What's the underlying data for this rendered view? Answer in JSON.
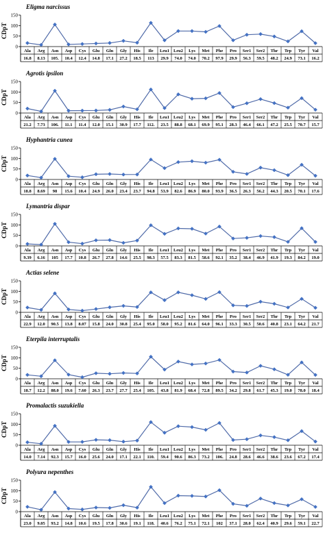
{
  "chart_data": {
    "type": "line",
    "categories": [
      "Ala",
      "Arg",
      "Asn",
      "Asp",
      "Cys",
      "Glu",
      "Gln",
      "Gly",
      "His",
      "Ile",
      "Leu1",
      "Leu2",
      "Lys",
      "Met",
      "Phe",
      "Pro",
      "Ser1",
      "Ser2",
      "Thr",
      "Trp",
      "Tyr",
      "Val"
    ],
    "ylabel": "CDpT",
    "ylim": [
      0,
      150
    ],
    "yticks": [
      0,
      50,
      100,
      150
    ],
    "line_color": "#4f6aa8",
    "marker_color": "#4472c4",
    "panels": [
      {
        "title": "Eligma narcissus",
        "values": [
          16.8,
          8.13,
          105,
          10.4,
          12.4,
          14.8,
          17.1,
          27.2,
          18.5,
          113,
          29.9,
          74.0,
          74.0,
          70.2,
          97.9,
          29.9,
          56.3,
          59.5,
          48.2,
          24.9,
          73.1,
          16.2
        ],
        "labels": [
          "16.8",
          "8.13",
          "105.",
          "10.4",
          "12.4",
          "14.8",
          "17.1",
          "27.2",
          "18.5",
          "113",
          "29.9",
          "74.0",
          "74.0",
          "70.2",
          "97.9",
          "29.9",
          "56.3",
          "59.5",
          "48.2",
          "24.9",
          "73.1",
          "16.2"
        ]
      },
      {
        "title": "Agrotis ipsilon",
        "values": [
          21.2,
          7.73,
          106,
          11.1,
          11.4,
          12.0,
          15.1,
          30.9,
          17.7,
          112,
          23.5,
          88.8,
          68.1,
          69.9,
          95.1,
          28.3,
          46.4,
          66.1,
          47.2,
          25.5,
          70.7,
          15.7
        ],
        "labels": [
          "21.2",
          "7.73",
          "106.",
          "11.1",
          "11.4",
          "12.0",
          "15.1",
          "30.9",
          "17.7",
          "112.",
          "23.5",
          "88.8",
          "68.1",
          "69.9",
          "95.1",
          "28.3",
          "46.4",
          "66.1",
          "47.2",
          "25.5",
          "70.7",
          "15.7"
        ]
      },
      {
        "title": "Hyphantria cunea",
        "values": [
          18.8,
          8.69,
          98,
          15.6,
          10.4,
          24.9,
          26.0,
          23.4,
          23.7,
          94.8,
          53.9,
          82.6,
          86.9,
          80.0,
          93.9,
          36.5,
          26.3,
          56.2,
          44.3,
          20.5,
          70.1,
          17.6
        ],
        "labels": [
          "18.8",
          "8.69",
          "98",
          "15.6",
          "10.4",
          "24.9",
          "26.0",
          "23.4",
          "23.7",
          "94.8",
          "53.9",
          "82.6",
          "86.9",
          "80.0",
          "93.9",
          "36.5",
          "26.3",
          "56.2",
          "44.3",
          "20.5",
          "70.1",
          "17.6"
        ]
      },
      {
        "title": "Lymantria dispar",
        "values": [
          9.39,
          6.16,
          105,
          17.7,
          10.8,
          26.7,
          27.8,
          14.6,
          25.5,
          98.3,
          57.5,
          83.3,
          81.5,
          58.6,
          92.1,
          35.2,
          38.4,
          46.9,
          41.9,
          19.3,
          84.2,
          19.0
        ],
        "labels": [
          "9.39",
          "6.16",
          "105",
          "17.7",
          "10.8",
          "26.7",
          "27.8",
          "14.6",
          "25.5",
          "98.3",
          "57.5",
          "83.3",
          "81.5",
          "58.6",
          "92.1",
          "35.2",
          "38.4",
          "46.9",
          "41.9",
          "19.3",
          "84.2",
          "19.0"
        ]
      },
      {
        "title": "Actias selene",
        "values": [
          22.9,
          12.0,
          90.5,
          13.8,
          8.07,
          15.8,
          24.0,
          30.8,
          25.4,
          95.0,
          58.0,
          95.2,
          81.6,
          64.0,
          96.1,
          33.3,
          30.5,
          50.6,
          40.8,
          23.1,
          64.2,
          21.7
        ],
        "labels": [
          "22.9",
          "12.0",
          "90.5",
          "13.8",
          "8.07",
          "15.8",
          "24.0",
          "30.8",
          "25.4",
          "95.0",
          "58.0",
          "95.2",
          "81.6",
          "64.0",
          "96.1",
          "33.3",
          "30.5",
          "50.6",
          "40.8",
          "23.1",
          "64.2",
          "21.7"
        ]
      },
      {
        "title": "Eterpila interruptalis",
        "values": [
          18.7,
          12.2,
          88.0,
          19.6,
          7.6,
          26.3,
          23.7,
          27.7,
          25.4,
          105,
          43.8,
          81.9,
          68.4,
          72.8,
          89.5,
          34.2,
          29.8,
          61.7,
          45.3,
          19.0,
          78.0,
          18.4
        ],
        "labels": [
          "18.7",
          "12.2",
          "88.0",
          "19.6",
          "7.60",
          "26.3",
          "23.7",
          "27.7",
          "25.4",
          "105.",
          "43.8",
          "81.9",
          "68.4",
          "72.8",
          "89.5",
          "34.2",
          "29.8",
          "61.7",
          "45.3",
          "19.0",
          "78.0",
          "18.4"
        ]
      },
      {
        "title": "Promalactis suzukiella",
        "values": [
          14.0,
          7.14,
          92.3,
          15.7,
          16.0,
          25.6,
          24.0,
          17.1,
          22.1,
          110,
          59.4,
          90.6,
          86.3,
          73.2,
          106,
          24.8,
          28.6,
          46.6,
          38.6,
          23.6,
          67.2,
          17.4
        ],
        "labels": [
          "14.0",
          "7.14",
          "92.3",
          "15.7",
          "16.0",
          "25.6",
          "24.0",
          "17.1",
          "22.1",
          "110.",
          "59.4",
          "90.6",
          "86.3",
          "73.2",
          "106.",
          "24.8",
          "28.6",
          "46.6",
          "38.6",
          "23.6",
          "67.2",
          "17.4"
        ]
      },
      {
        "title": "Polyura nepenthes",
        "values": [
          23.0,
          9.05,
          93.2,
          14.8,
          10.6,
          19.5,
          17.8,
          30.6,
          19.1,
          118,
          40.6,
          76.2,
          75.1,
          72.1,
          102,
          37.1,
          28.0,
          62.4,
          40.9,
          29.6,
          59.1,
          22.7
        ],
        "labels": [
          "23.0",
          "9.05",
          "93.2",
          "14.8",
          "10.6",
          "19.5",
          "17.8",
          "30.6",
          "19.1",
          "118.",
          "40.6",
          "76.2",
          "75.1",
          "72.1",
          "102",
          "37.1",
          "28.0",
          "62.4",
          "40.9",
          "29.6",
          "59.1",
          "22.7"
        ]
      }
    ]
  }
}
